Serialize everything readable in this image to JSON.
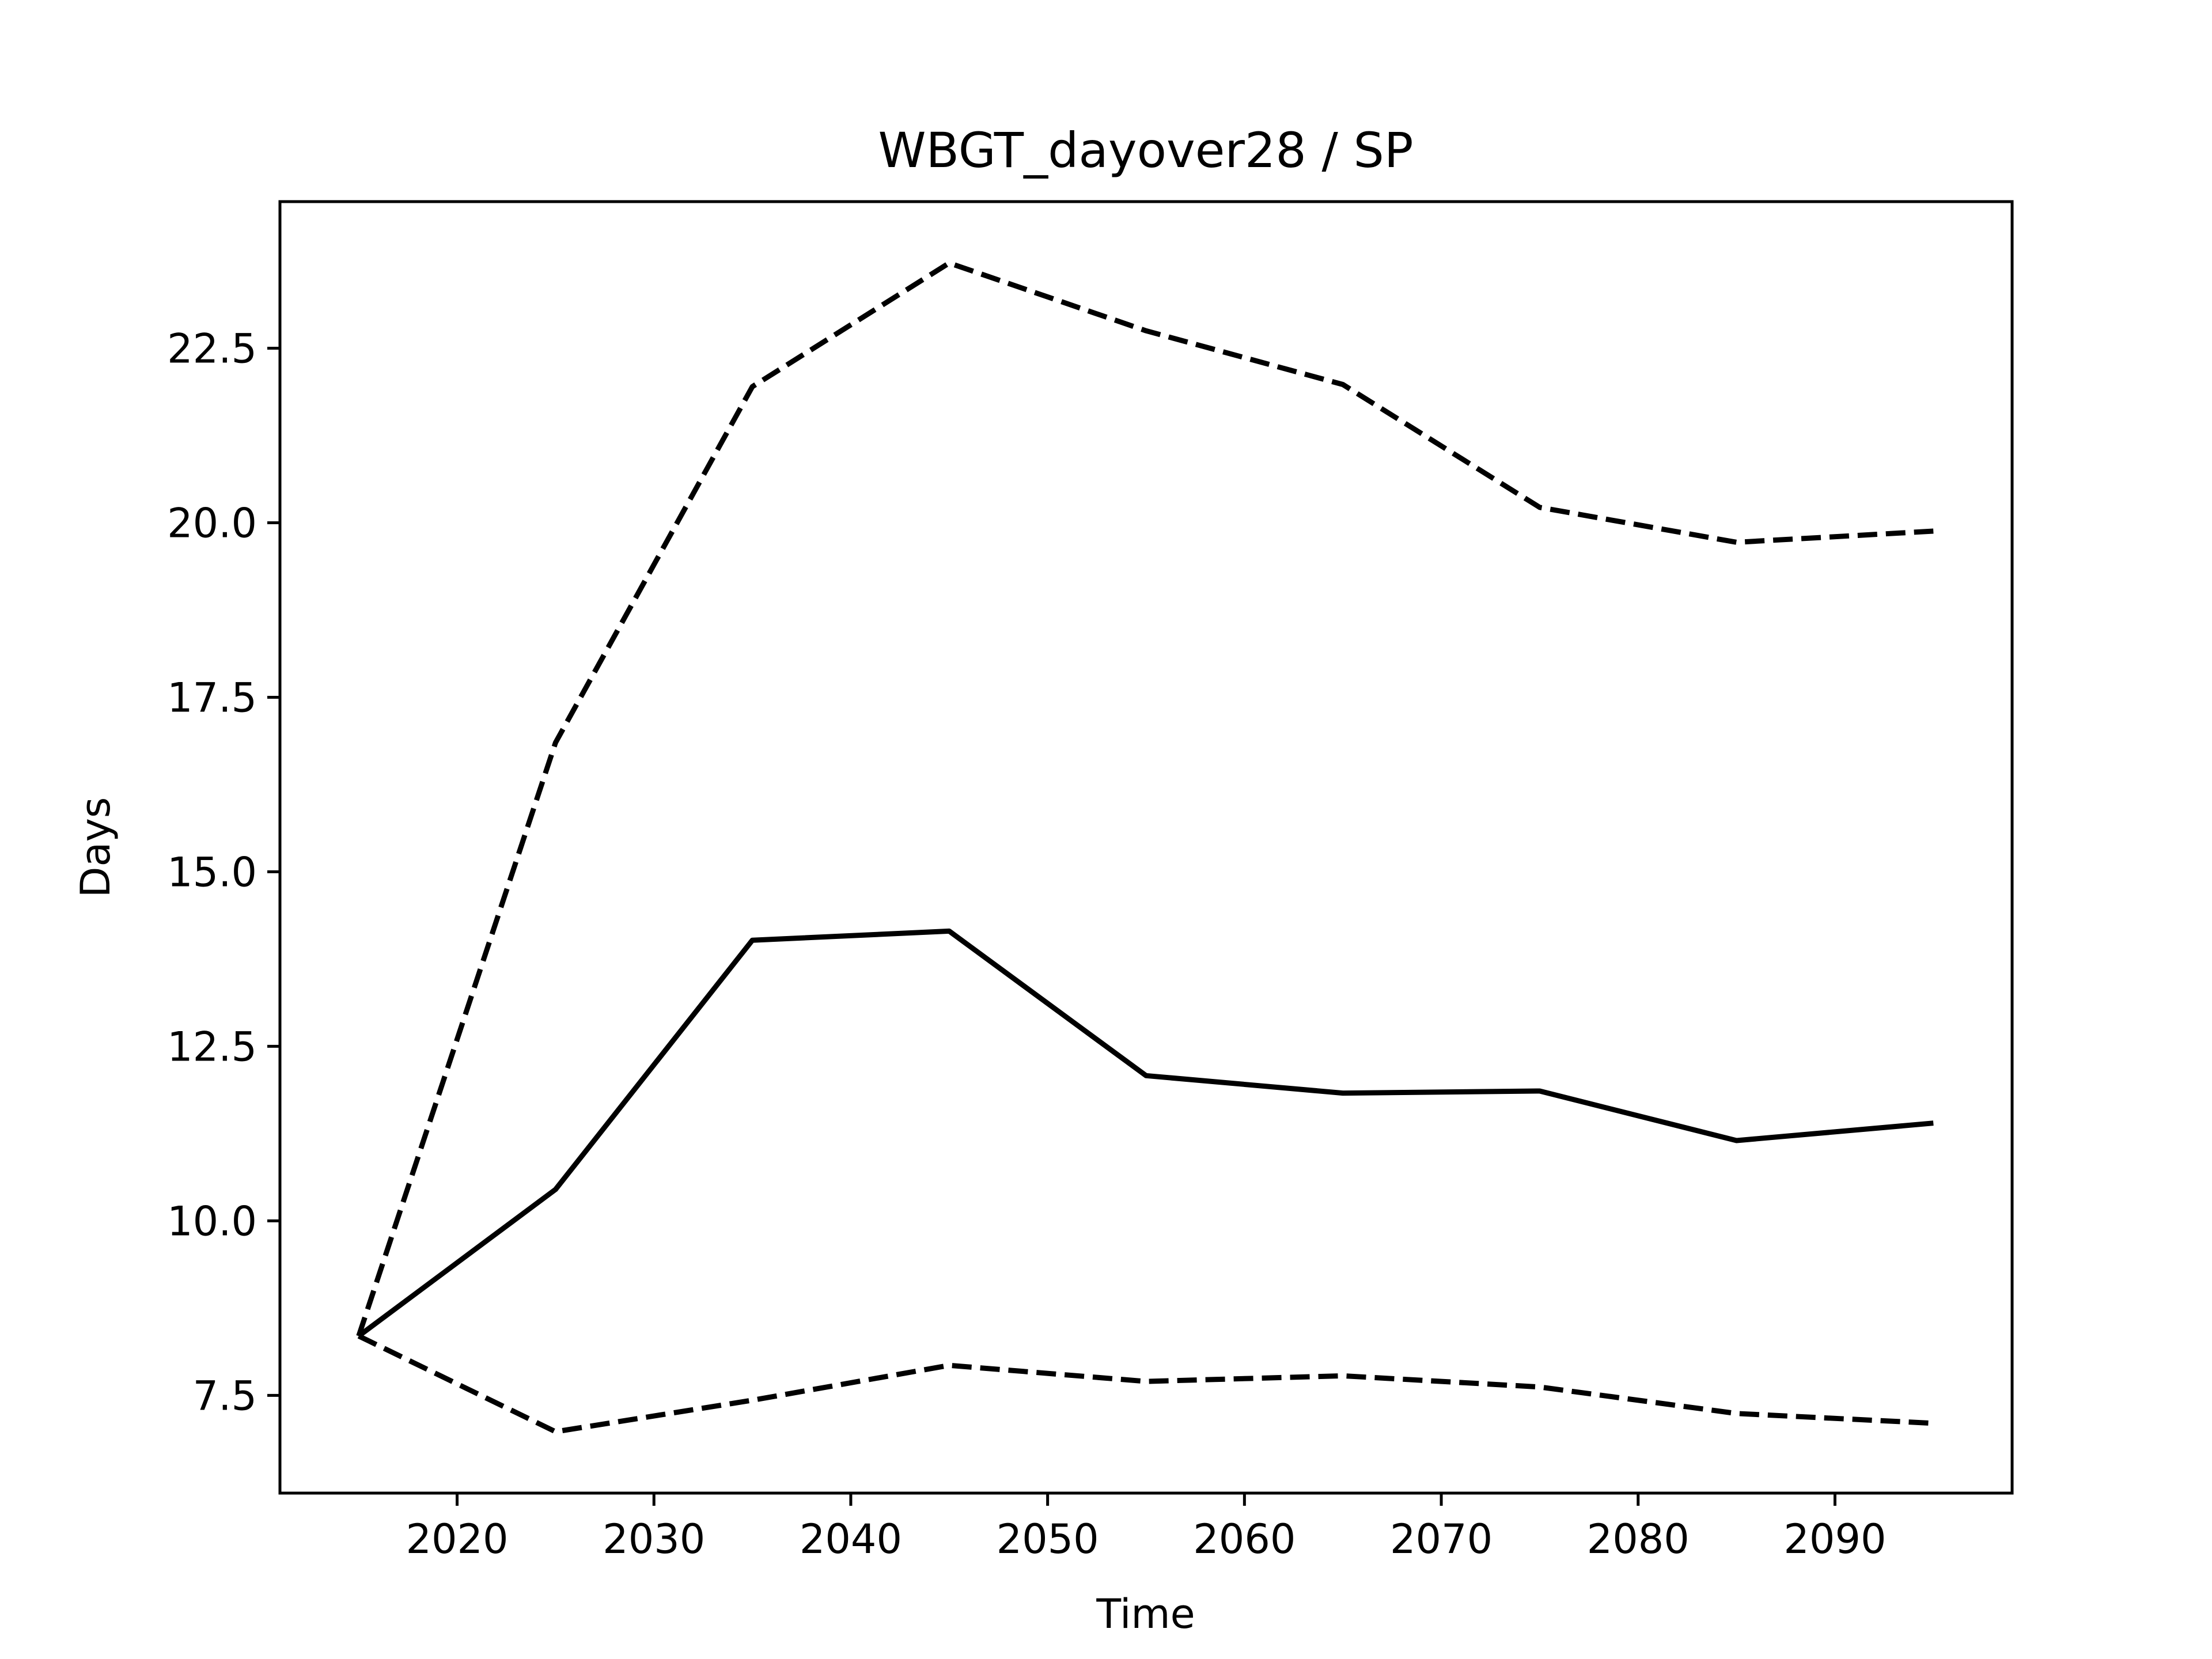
{
  "chart_data": {
    "type": "line",
    "title": "WBGT_dayover28 / SP",
    "xlabel": "Time",
    "ylabel": "Days",
    "xlim": [
      2011,
      2099
    ],
    "ylim": [
      6.1,
      24.6
    ],
    "x_ticks": [
      2020,
      2030,
      2040,
      2050,
      2060,
      2070,
      2080,
      2090
    ],
    "y_ticks": [
      7.5,
      10.0,
      12.5,
      15.0,
      17.5,
      20.0,
      22.5
    ],
    "x_tick_labels": [
      "2020",
      "2030",
      "2040",
      "2050",
      "2060",
      "2070",
      "2080",
      "2090"
    ],
    "y_tick_labels": [
      "7.5",
      "10.0",
      "12.5",
      "15.0",
      "17.5",
      "20.0",
      "22.5"
    ],
    "grid": false,
    "line_color": "#000000",
    "x": [
      2015,
      2025,
      2035,
      2045,
      2055,
      2065,
      2075,
      2085,
      2095
    ],
    "series": [
      {
        "style": "solid",
        "values": [
          8.35,
          10.45,
          14.02,
          14.15,
          12.08,
          11.83,
          11.86,
          11.15,
          11.4
        ]
      },
      {
        "style": "dashed",
        "values": [
          8.35,
          16.85,
          21.95,
          23.72,
          22.75,
          21.98,
          20.22,
          19.72,
          19.88
        ]
      },
      {
        "style": "dashed",
        "values": [
          8.35,
          6.98,
          7.43,
          7.93,
          7.7,
          7.78,
          7.62,
          7.24,
          7.1
        ]
      }
    ]
  }
}
